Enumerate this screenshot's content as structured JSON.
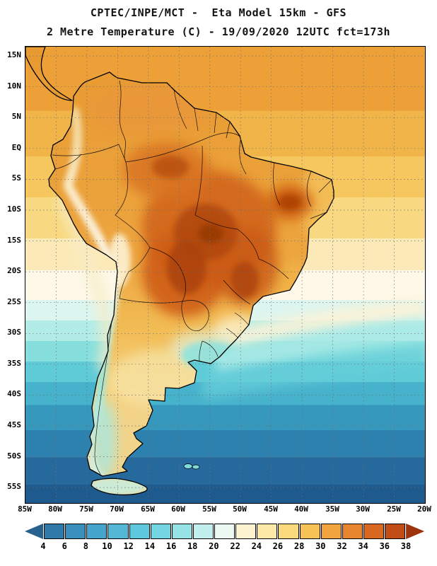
{
  "header": {
    "title_line1": "CPTEC/INPE/MCT -  Eta Model 15km - GFS",
    "title_line2": "2 Metre Temperature (C) - 19/09/2020 12UTC fct=173h"
  },
  "map": {
    "lat_ticks": [
      "15N",
      "10N",
      "5N",
      "EQ",
      "5S",
      "10S",
      "15S",
      "20S",
      "25S",
      "30S",
      "35S",
      "40S",
      "45S",
      "50S",
      "55S"
    ],
    "lon_ticks": [
      "85W",
      "80W",
      "75W",
      "70W",
      "65W",
      "60W",
      "55W",
      "50W",
      "45W",
      "40W",
      "35W",
      "30W",
      "25W",
      "20W"
    ]
  },
  "colorbar": {
    "values": [
      "4",
      "6",
      "8",
      "10",
      "12",
      "14",
      "16",
      "18",
      "20",
      "22",
      "24",
      "26",
      "28",
      "30",
      "32",
      "34",
      "36",
      "38"
    ],
    "colors": [
      "#27618e",
      "#2f7aa8",
      "#3a90bd",
      "#46a5cc",
      "#52b8d6",
      "#5ec9dc",
      "#73d6e0",
      "#96e3e6",
      "#c2efee",
      "#ecf9f2",
      "#fdf3d0",
      "#fce9a8",
      "#fbd97d",
      "#f8c257",
      "#f2a53f",
      "#e8862f",
      "#d96820",
      "#c24c16",
      "#9c330c"
    ]
  }
}
